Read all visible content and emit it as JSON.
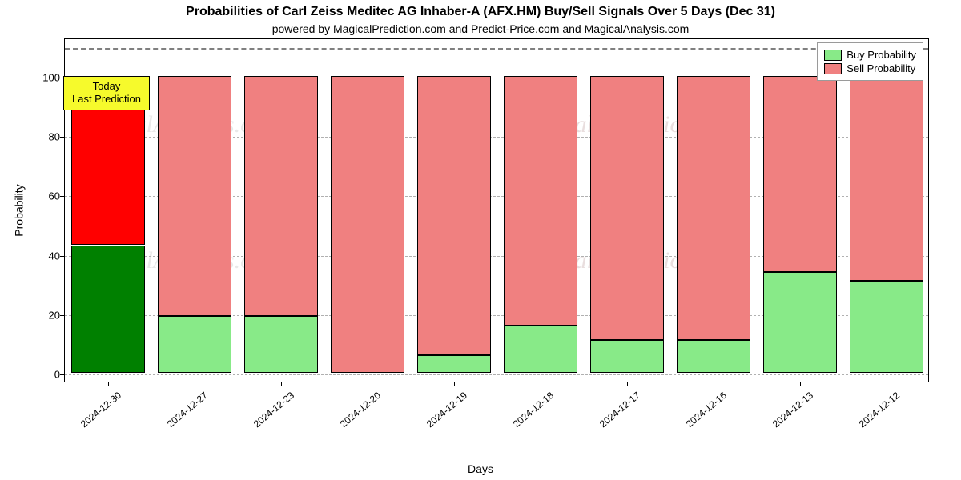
{
  "chart": {
    "type": "stacked-bar",
    "title": "Probabilities of Carl Zeiss Meditec AG Inhaber-A (AFX.HM) Buy/Sell Signals Over 5 Days (Dec 31)",
    "title_fontsize": 16,
    "subtitle": "powered by MagicalPrediction.com and Predict-Price.com and MagicalAnalysis.com",
    "subtitle_fontsize": 14,
    "x_axis_title": "Days",
    "y_axis_title": "Probability",
    "label_fontsize": 14,
    "tick_fontsize": 13,
    "background_color": "#ffffff",
    "border_color": "#000000",
    "grid_color": "#b0b0b0",
    "ref_line_color": "#808080",
    "ylim": [
      -3,
      113
    ],
    "ytick_step": 20,
    "yticks": [
      0,
      20,
      40,
      60,
      80,
      100
    ],
    "ref_line_y": 110,
    "bar_width": 0.86,
    "categories": [
      "2024-12-30",
      "2024-12-27",
      "2024-12-23",
      "2024-12-20",
      "2024-12-19",
      "2024-12-18",
      "2024-12-17",
      "2024-12-16",
      "2024-12-13",
      "2024-12-12"
    ],
    "series": {
      "buy": [
        43,
        19,
        19,
        0,
        6,
        16,
        11,
        11,
        34,
        31
      ],
      "sell": [
        57,
        81,
        81,
        100,
        94,
        84,
        89,
        89,
        66,
        69
      ]
    },
    "highlight_index": 0,
    "colors": {
      "buy_normal": "#88ea88",
      "sell_normal": "#f08080",
      "buy_highlight": "#008000",
      "sell_highlight": "#ff0000",
      "bar_border": "#000000"
    },
    "callout": {
      "lines": [
        "Today",
        "Last Prediction"
      ],
      "background_color": "#f6fa2c",
      "border_color": "#000000",
      "font_size": 13
    },
    "legend": {
      "items": [
        {
          "label": "Buy Probability",
          "color": "#88ea88"
        },
        {
          "label": "Sell Probability",
          "color": "#f08080"
        }
      ],
      "font_size": 13,
      "border_color": "#9a9a9a",
      "background_color": "#ffffff"
    },
    "watermarks": [
      {
        "text": "MagicalAnalysis.com",
        "color": "rgba(192,192,192,0.35)"
      },
      {
        "text": "MagicalPrediction.com",
        "color": "rgba(192,160,160,0.35)"
      },
      {
        "text": "MagicalAnalysis.com",
        "color": "rgba(192,192,192,0.35)"
      },
      {
        "text": "MagicalPrediction.com",
        "color": "rgba(192,160,160,0.35)"
      }
    ]
  }
}
